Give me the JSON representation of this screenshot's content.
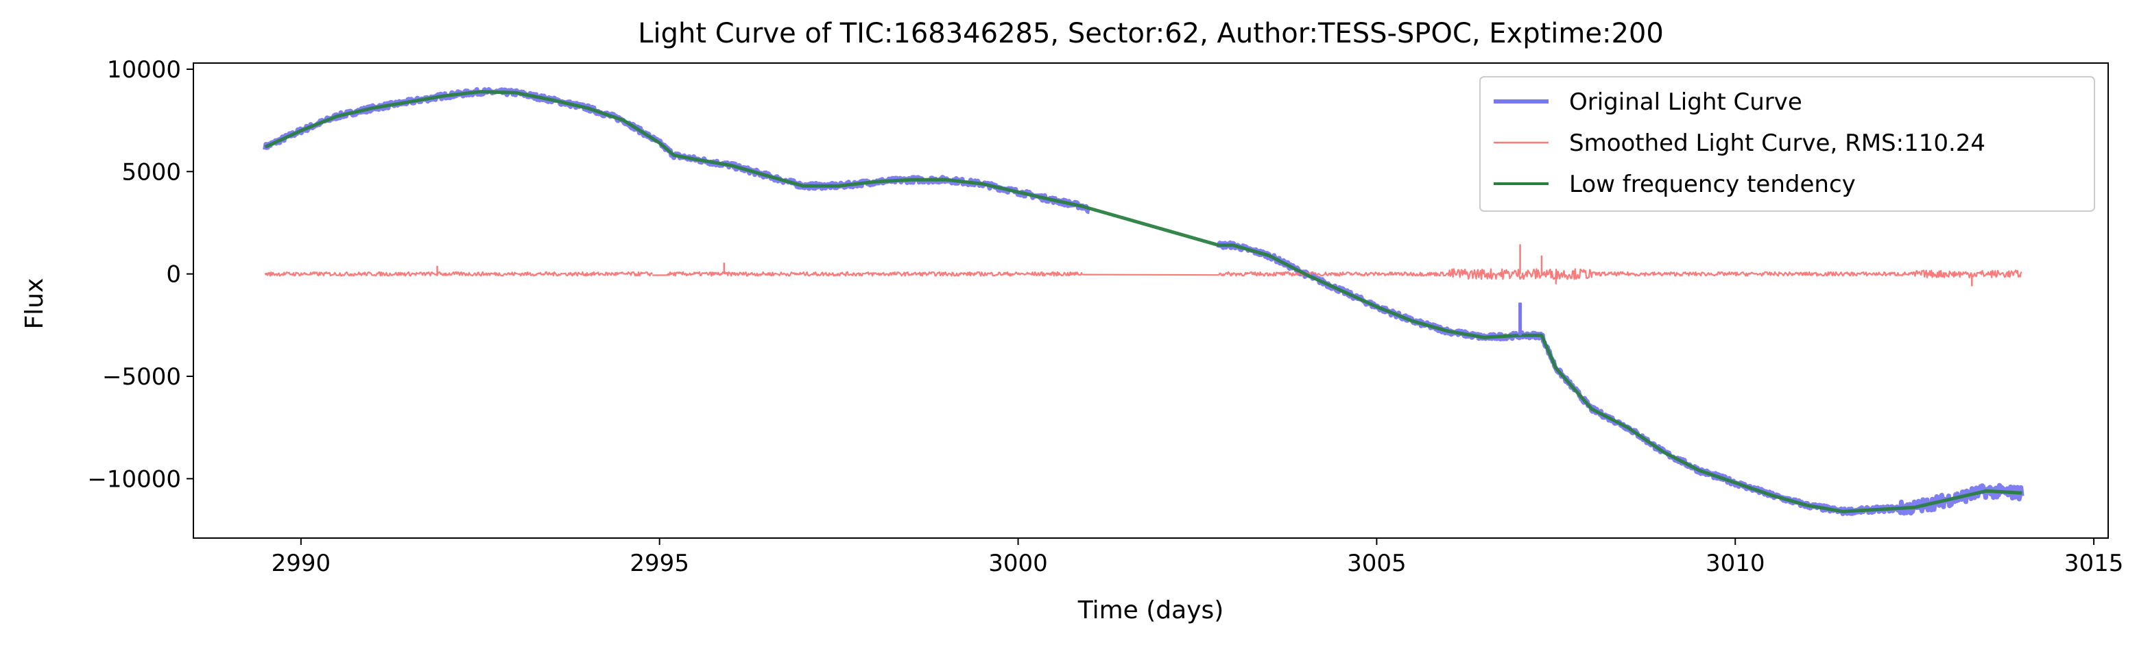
{
  "chart_data": {
    "type": "line",
    "title": "Light Curve of TIC:168346285, Sector:62, Author:TESS-SPOC, Exptime:200",
    "xlabel": "Time (days)",
    "ylabel": "Flux",
    "xlim": [
      2988.5,
      3015.2
    ],
    "ylim": [
      -12900,
      10300
    ],
    "xticks": [
      2990,
      2995,
      3000,
      3005,
      3010,
      3015
    ],
    "yticks": [
      10000,
      5000,
      0,
      -5000,
      -10000
    ],
    "xtick_labels": [
      "2990",
      "2995",
      "3000",
      "3005",
      "3010",
      "3015"
    ],
    "ytick_labels": [
      "10000",
      "5000",
      "0",
      "−5000",
      "−10000"
    ],
    "grid": false,
    "legend_position": "top-right",
    "series": [
      {
        "name": "Original Light Curve",
        "color": "#7878f0",
        "style": "thick-noisy",
        "segments": [
          {
            "x": [
              2989.5,
              2990.0,
              2990.5,
              2991.0,
              2991.5,
              2992.0,
              2992.5,
              2993.0,
              2993.5,
              2994.0,
              2994.5,
              2995.0,
              2995.2,
              2995.5,
              2996.0,
              2996.5,
              2997.0,
              2997.5,
              2998.0,
              2998.5,
              2999.0,
              2999.5,
              3000.0,
              3000.5,
              3000.9,
              3001.0
            ],
            "y": [
              6200,
              7000,
              7700,
              8100,
              8400,
              8700,
              8900,
              8850,
              8500,
              8100,
              7500,
              6400,
              5800,
              5600,
              5300,
              4800,
              4300,
              4300,
              4500,
              4600,
              4600,
              4400,
              4000,
              3600,
              3300,
              3100
            ]
          },
          {
            "x": [
              3002.8,
              3003.0,
              3003.5,
              3004.0,
              3004.5,
              3005.0,
              3005.5,
              3006.0,
              3006.5,
              3007.0,
              3007.3,
              3007.5,
              3008.0,
              3008.5,
              3009.0,
              3009.5,
              3010.0,
              3010.5,
              3011.0,
              3011.5,
              3012.0,
              3012.5,
              3013.0,
              3013.5,
              3014.0
            ],
            "y": [
              1400,
              1400,
              900,
              0,
              -800,
              -1600,
              -2300,
              -2800,
              -3100,
              -3000,
              -3000,
              -4600,
              -6600,
              -7500,
              -8700,
              -9600,
              -10200,
              -10800,
              -11300,
              -11600,
              -11500,
              -11400,
              -11000,
              -10600,
              -10700
            ]
          }
        ]
      },
      {
        "name": "Smoothed Light Curve, RMS:110.24",
        "color": "#f87c7c",
        "style": "thin",
        "segments": [
          {
            "x": [
              2989.5,
              2994.9
            ],
            "y": [
              0,
              0
            ]
          },
          {
            "x": [
              2994.9,
              2995.1
            ],
            "y": [
              -60,
              -60
            ]
          },
          {
            "x": [
              2995.1,
              3000.9
            ],
            "y": [
              0,
              0
            ]
          },
          {
            "x": [
              3000.9,
              3002.8
            ],
            "y": [
              -30,
              -50
            ]
          },
          {
            "x": [
              3002.8,
              3014.0
            ],
            "y": [
              0,
              0
            ]
          }
        ],
        "spikes": [
          {
            "x": 2991.9,
            "y": 400
          },
          {
            "x": 2995.9,
            "y": 550
          },
          {
            "x": 3007.0,
            "y": 1450
          },
          {
            "x": 3007.3,
            "y": 900
          },
          {
            "x": 3007.5,
            "y": -500
          },
          {
            "x": 3013.3,
            "y": -600
          }
        ]
      },
      {
        "name": "Low frequency tendency",
        "color": "#2a8040",
        "style": "medium",
        "segments": [
          {
            "x": [
              2989.5,
              2990.0,
              2990.5,
              2991.0,
              2991.5,
              2992.0,
              2992.5,
              2993.0,
              2993.5,
              2994.0,
              2994.5,
              2995.0,
              2995.2,
              2995.5,
              2996.0,
              2996.5,
              2997.0,
              2997.5,
              2998.0,
              2998.5,
              2999.0,
              2999.5,
              3000.0,
              3000.5,
              3000.9,
              3002.8,
              3003.0,
              3003.5,
              3004.0,
              3004.5,
              3005.0,
              3005.5,
              3006.0,
              3006.5,
              3007.0,
              3007.3,
              3007.5,
              3008.0,
              3008.5,
              3009.0,
              3009.5,
              3010.0,
              3010.5,
              3011.0,
              3011.5,
              3012.0,
              3012.5,
              3013.0,
              3013.5,
              3014.0
            ],
            "y": [
              6200,
              7000,
              7700,
              8100,
              8400,
              8700,
              8900,
              8850,
              8500,
              8100,
              7500,
              6400,
              5800,
              5600,
              5300,
              4800,
              4300,
              4300,
              4500,
              4600,
              4600,
              4400,
              4000,
              3600,
              3300,
              1400,
              1400,
              900,
              0,
              -800,
              -1600,
              -2300,
              -2800,
              -3100,
              -3000,
              -3000,
              -4600,
              -6600,
              -7500,
              -8700,
              -9600,
              -10200,
              -10800,
              -11300,
              -11600,
              -11500,
              -11400,
              -11000,
              -10600,
              -10700
            ]
          }
        ]
      }
    ]
  }
}
